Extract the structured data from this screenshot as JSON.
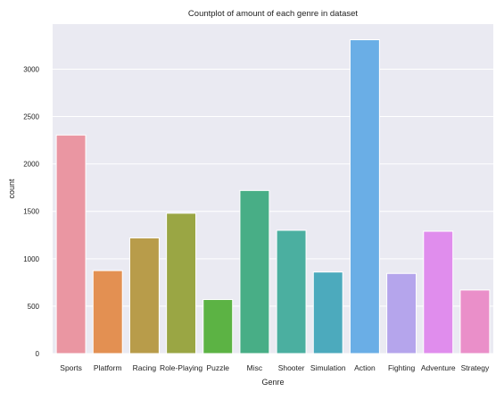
{
  "chart_data": {
    "type": "bar",
    "title": "Countplot of amount of each genre in dataset",
    "xlabel": "Genre",
    "ylabel": "count",
    "categories": [
      "Sports",
      "Platform",
      "Racing",
      "Role-Playing",
      "Puzzle",
      "Misc",
      "Shooter",
      "Simulation",
      "Action",
      "Fighting",
      "Adventure",
      "Strategy"
    ],
    "values": [
      2305,
      875,
      1220,
      1480,
      570,
      1720,
      1300,
      860,
      3310,
      845,
      1290,
      670
    ],
    "colors": [
      "#ea96a2",
      "#e39052",
      "#b89c4a",
      "#9aa644",
      "#5cb344",
      "#48ae86",
      "#4bafa0",
      "#4caabd",
      "#6aaee6",
      "#b5a5ec",
      "#e08ded",
      "#ea8fc9"
    ],
    "yticks": [
      0,
      500,
      1000,
      1500,
      2000,
      2500,
      3000
    ],
    "ylim": [
      0,
      3475
    ],
    "grid": true,
    "background": "#eaeaf2",
    "legend": "none"
  }
}
